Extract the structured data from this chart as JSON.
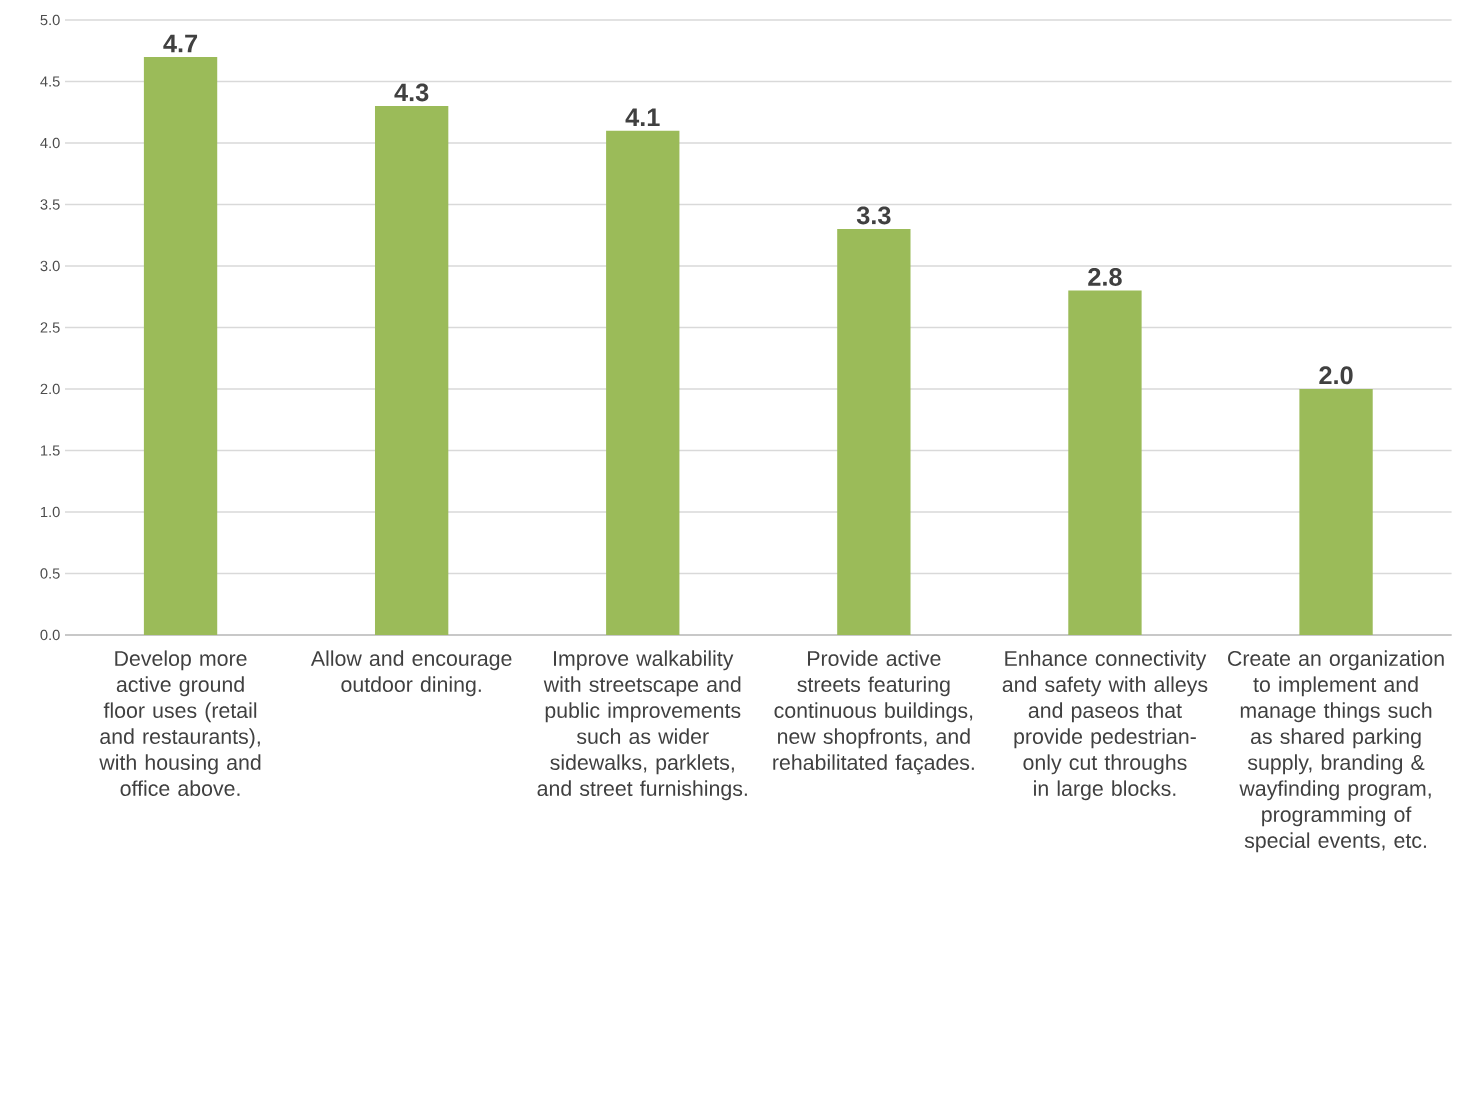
{
  "chart_data": {
    "type": "bar",
    "categories": [
      "Develop more active ground floor uses (retail and restaurants), with housing and office above.",
      "Allow and encourage outdoor dining.",
      "Improve walkability with streetscape and public improvements such as wider sidewalks, parklets, and street furnishings.",
      "Provide active streets featuring continuous buildings, new shopfronts, and rehabilitated façades.",
      "Enhance connectivity and safety with alleys and paseos that provide pedestrian-only cut throughs in large blocks.",
      "Create an organization to implement and manage things such as shared parking supply, branding & wayfinding program, programming of special events, etc."
    ],
    "values": [
      4.7,
      4.3,
      4.1,
      3.3,
      2.8,
      2.0
    ],
    "value_labels": [
      "4.7",
      "4.3",
      "4.1",
      "3.3",
      "2.8",
      "2.0"
    ],
    "color": "#9bbb59",
    "ylim": [
      0,
      5
    ],
    "yticks": [
      {
        "value": 0,
        "label": "0.0"
      },
      {
        "value": 0.5,
        "label": "0.5"
      },
      {
        "value": 1,
        "label": "1.0"
      },
      {
        "value": 1.5,
        "label": "1.5"
      },
      {
        "value": 2,
        "label": "2.0"
      },
      {
        "value": 2.5,
        "label": "2.5"
      },
      {
        "value": 3,
        "label": "3.0"
      },
      {
        "value": 3.5,
        "label": "3.5"
      },
      {
        "value": 4,
        "label": "4.0"
      },
      {
        "value": 4.5,
        "label": "4.5"
      },
      {
        "value": 5,
        "label": "5.0"
      }
    ],
    "grid": "y"
  }
}
